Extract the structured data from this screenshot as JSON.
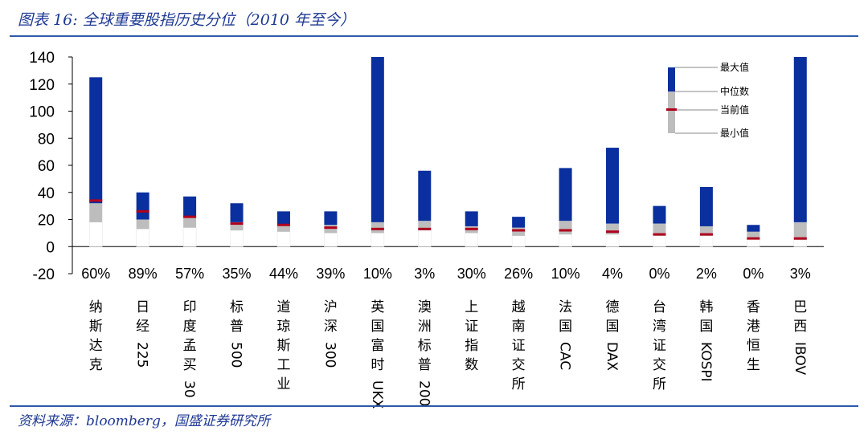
{
  "header": {
    "title": "图表 16: 全球重要股指历史分位（2010 年至今）"
  },
  "footer": {
    "source": "资料来源：bloomberg，国盛证券研究所"
  },
  "colors": {
    "upper": "#0a2f9e",
    "lower": "#bdbdbd",
    "current": "#b0001c",
    "title": "#1f3a93"
  },
  "legend": {
    "max_label": "最大值",
    "median_label": "中位数",
    "current_label": "当前值",
    "min_label": "最小值"
  },
  "chart_data": {
    "type": "bar",
    "description_type": "floating stacked range bars (min–median–max) with current value marker",
    "ylim": [
      -20,
      140
    ],
    "yticks": [
      140,
      120,
      100,
      80,
      60,
      40,
      20,
      0,
      -20
    ],
    "categories": [
      "纳斯达克",
      "日经225",
      "印度孟买30",
      "标普500",
      "道琼斯工业",
      "沪深300",
      "英国富时UKX",
      "澳洲标普200",
      "上证指数",
      "越南证交所",
      "法国CAC",
      "德国DAX",
      "台湾证交所",
      "韩国KOSPI",
      "香港恒生",
      "巴西IBOV"
    ],
    "percentiles": [
      "60%",
      "89%",
      "57%",
      "35%",
      "44%",
      "39%",
      "10%",
      "3%",
      "30%",
      "26%",
      "10%",
      "4%",
      "0%",
      "2%",
      "0%",
      "3%"
    ],
    "series": [
      {
        "name": "最小值",
        "values": [
          18,
          13,
          14,
          12,
          11,
          10,
          10,
          12,
          10,
          8,
          9,
          9,
          8,
          8,
          6,
          5
        ]
      },
      {
        "name": "中位数",
        "values": [
          32,
          20,
          22,
          18,
          16,
          16,
          18,
          19,
          15,
          14,
          19,
          17,
          17,
          15,
          11,
          18
        ]
      },
      {
        "name": "最大值",
        "values": [
          125,
          40,
          37,
          32,
          26,
          26,
          140,
          56,
          26,
          22,
          58,
          73,
          30,
          44,
          16,
          140
        ]
      },
      {
        "name": "当前值",
        "values": [
          34,
          26,
          22,
          17,
          16,
          14,
          13,
          13,
          13,
          12,
          12,
          11,
          9,
          9,
          6,
          6
        ]
      }
    ]
  }
}
